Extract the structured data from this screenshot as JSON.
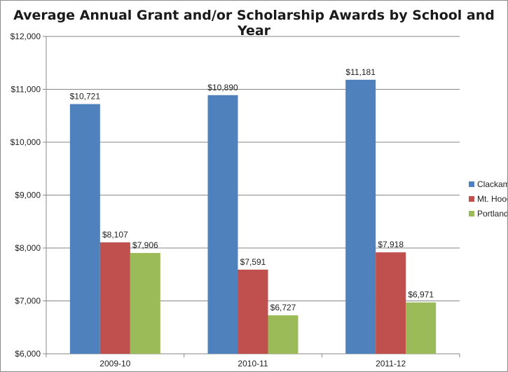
{
  "chart_data": {
    "type": "bar",
    "title": "Average Annual Grant and/or Scholarship Awards by School and Year",
    "xlabel": "",
    "ylabel": "",
    "categories": [
      "2009-10",
      "2010-11",
      "2011-12"
    ],
    "series": [
      {
        "name": "Clackamas",
        "values": [
          10721,
          10890,
          11181
        ],
        "labels": [
          "$10,721",
          "$10,890",
          "$11,181"
        ],
        "color": "#4f81bd"
      },
      {
        "name": "Mt. Hood",
        "values": [
          8107,
          7591,
          7918
        ],
        "labels": [
          "$8,107",
          "$7,591",
          "$7,918"
        ],
        "color": "#c0504d"
      },
      {
        "name": "Portland",
        "values": [
          7906,
          6727,
          6971
        ],
        "labels": [
          "$7,906",
          "$6,727",
          "$6,971"
        ],
        "color": "#9bbb59"
      }
    ],
    "ylim": [
      6000,
      12000
    ],
    "yticks": [
      6000,
      7000,
      8000,
      9000,
      10000,
      11000,
      12000
    ],
    "ytick_labels": [
      "$6,000",
      "$7,000",
      "$8,000",
      "$9,000",
      "$10,000",
      "$11,000",
      "$12,000"
    ],
    "grid": true,
    "legend_position": "right"
  }
}
